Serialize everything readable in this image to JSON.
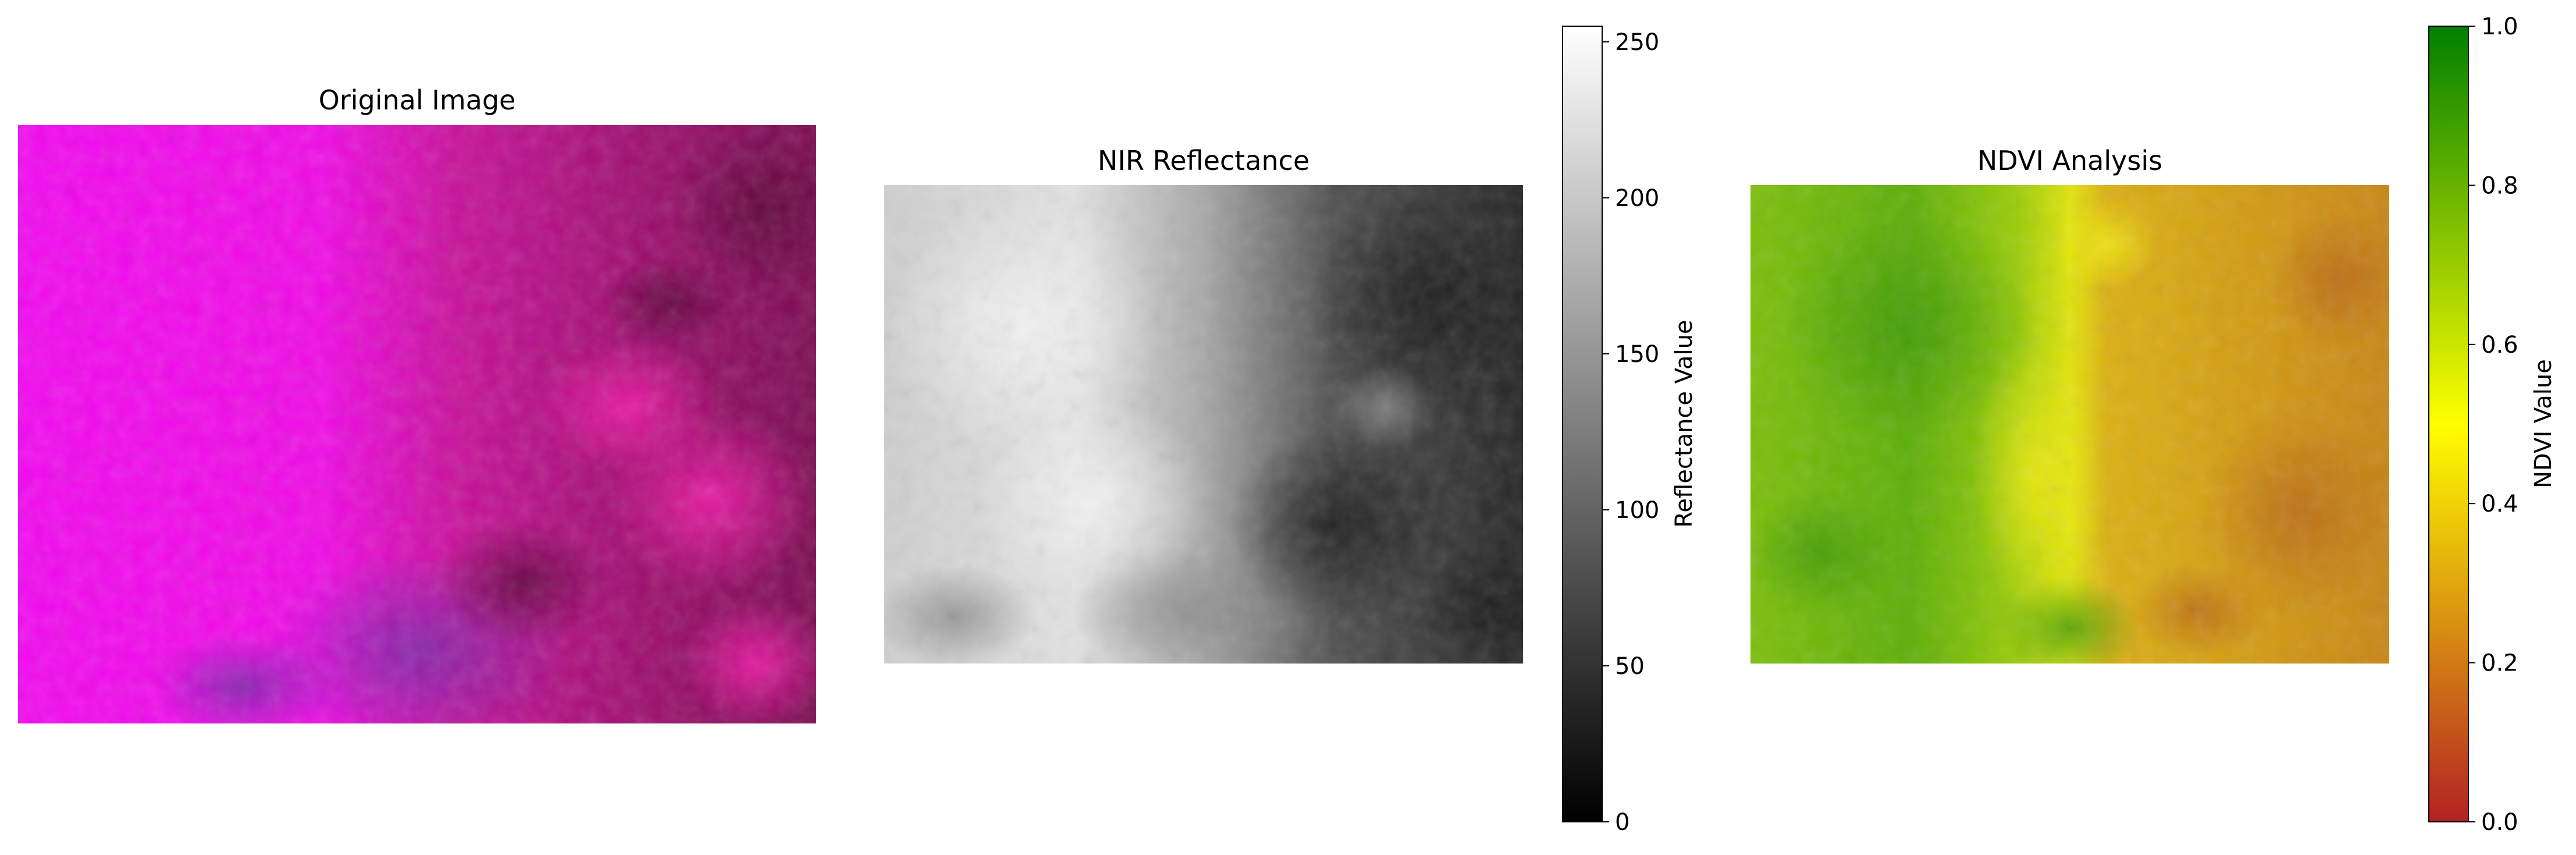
{
  "figure": {
    "panels": [
      {
        "id": "original",
        "title": "Original Image"
      },
      {
        "id": "nir",
        "title": "NIR Reflectance"
      },
      {
        "id": "ndvi",
        "title": "NDVI Analysis"
      }
    ],
    "colorbars": {
      "nir": {
        "label": "Reflectance Value",
        "range": [
          0,
          255
        ],
        "ticks": [
          0,
          50,
          100,
          150,
          200,
          250
        ],
        "colormap": [
          "#000000",
          "#ffffff"
        ]
      },
      "ndvi": {
        "label": "NDVI Value",
        "range": [
          0.0,
          1.0
        ],
        "ticks": [
          "0.0",
          "0.2",
          "0.4",
          "0.6",
          "0.8",
          "1.0"
        ],
        "colormap": [
          "#b22222",
          "#ffff00",
          "#008000"
        ]
      }
    }
  }
}
